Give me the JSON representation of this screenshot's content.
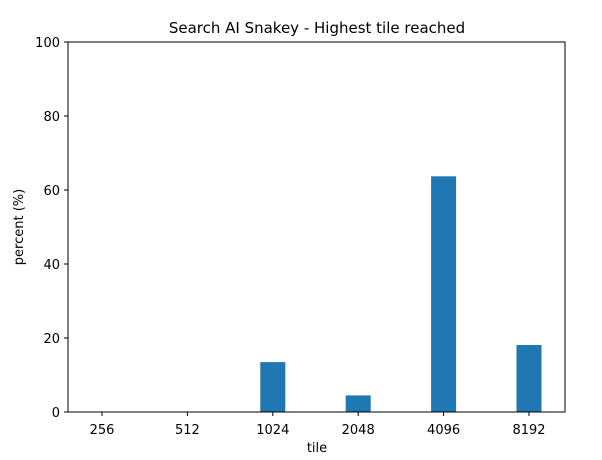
{
  "chart_data": {
    "type": "bar",
    "title": "Search AI Snakey - Highest tile reached",
    "xlabel": "tile",
    "ylabel": "percent (%)",
    "categories": [
      "256",
      "512",
      "1024",
      "2048",
      "4096",
      "8192"
    ],
    "values": [
      0,
      0,
      13.5,
      4.5,
      63.7,
      18.1
    ],
    "ylim": [
      0,
      100
    ],
    "yticks": [
      "0",
      "20",
      "40",
      "60",
      "80",
      "100"
    ],
    "bar_color": "#1f77b4",
    "grid": false,
    "legend": "none"
  }
}
